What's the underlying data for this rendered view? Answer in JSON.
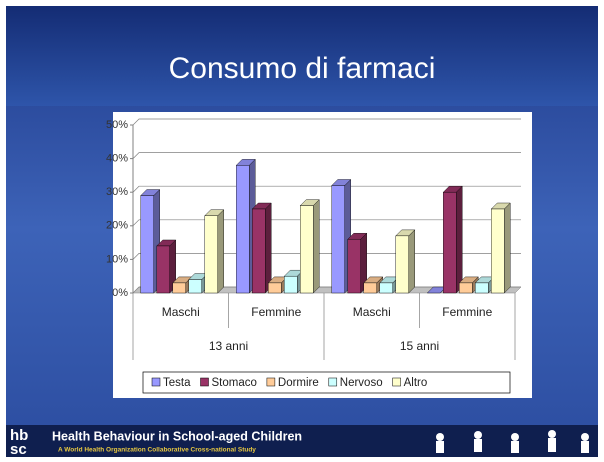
{
  "chart_data": {
    "type": "bar3d",
    "title": "Consumo di farmaci",
    "categories": [
      "Maschi",
      "Femmine",
      "Maschi",
      "Femmine"
    ],
    "groups": [
      "13 anni",
      "15 anni"
    ],
    "series": [
      {
        "name": "Testa",
        "color": "#9999ff",
        "values": [
          29,
          38,
          32,
          0
        ]
      },
      {
        "name": "Stomaco",
        "color": "#993366",
        "values": [
          14,
          25,
          16,
          30
        ]
      },
      {
        "name": "Dormire",
        "color": "#ffcc99",
        "values": [
          3,
          3,
          3,
          3
        ]
      },
      {
        "name": "Nervoso",
        "color": "#ccffff",
        "values": [
          4,
          5,
          3,
          3
        ]
      },
      {
        "name": "Altro",
        "color": "#ffffcc",
        "values": [
          23,
          26,
          17,
          25
        ]
      }
    ],
    "ylim": [
      0,
      50
    ],
    "yticks": [
      {
        "value": 0,
        "label": "0%"
      },
      {
        "value": 10,
        "label": "10%"
      },
      {
        "value": 20,
        "label": "20%"
      },
      {
        "value": 30,
        "label": "30%"
      },
      {
        "value": 40,
        "label": "40%"
      },
      {
        "value": 50,
        "label": "50%"
      }
    ],
    "grid": true,
    "legend": "bottom"
  },
  "footer": {
    "logo": [
      "hb",
      "sc"
    ],
    "title": "Health Behaviour in School-aged Children",
    "subtitle": "A World Health Organization Collaborative Cross-national Study"
  }
}
